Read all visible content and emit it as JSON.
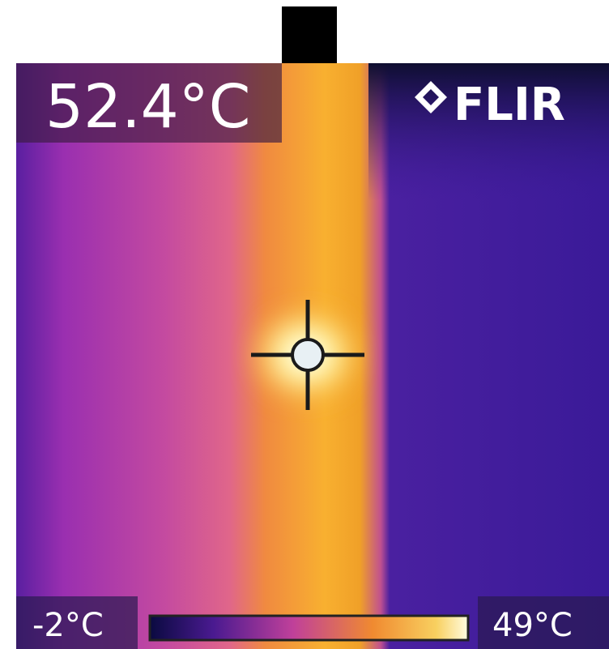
{
  "readout": {
    "spot_temperature": "52.4°C"
  },
  "brand": {
    "logo": "FLIR"
  },
  "scale": {
    "min_label": "-2°C",
    "max_label": "49°C"
  }
}
